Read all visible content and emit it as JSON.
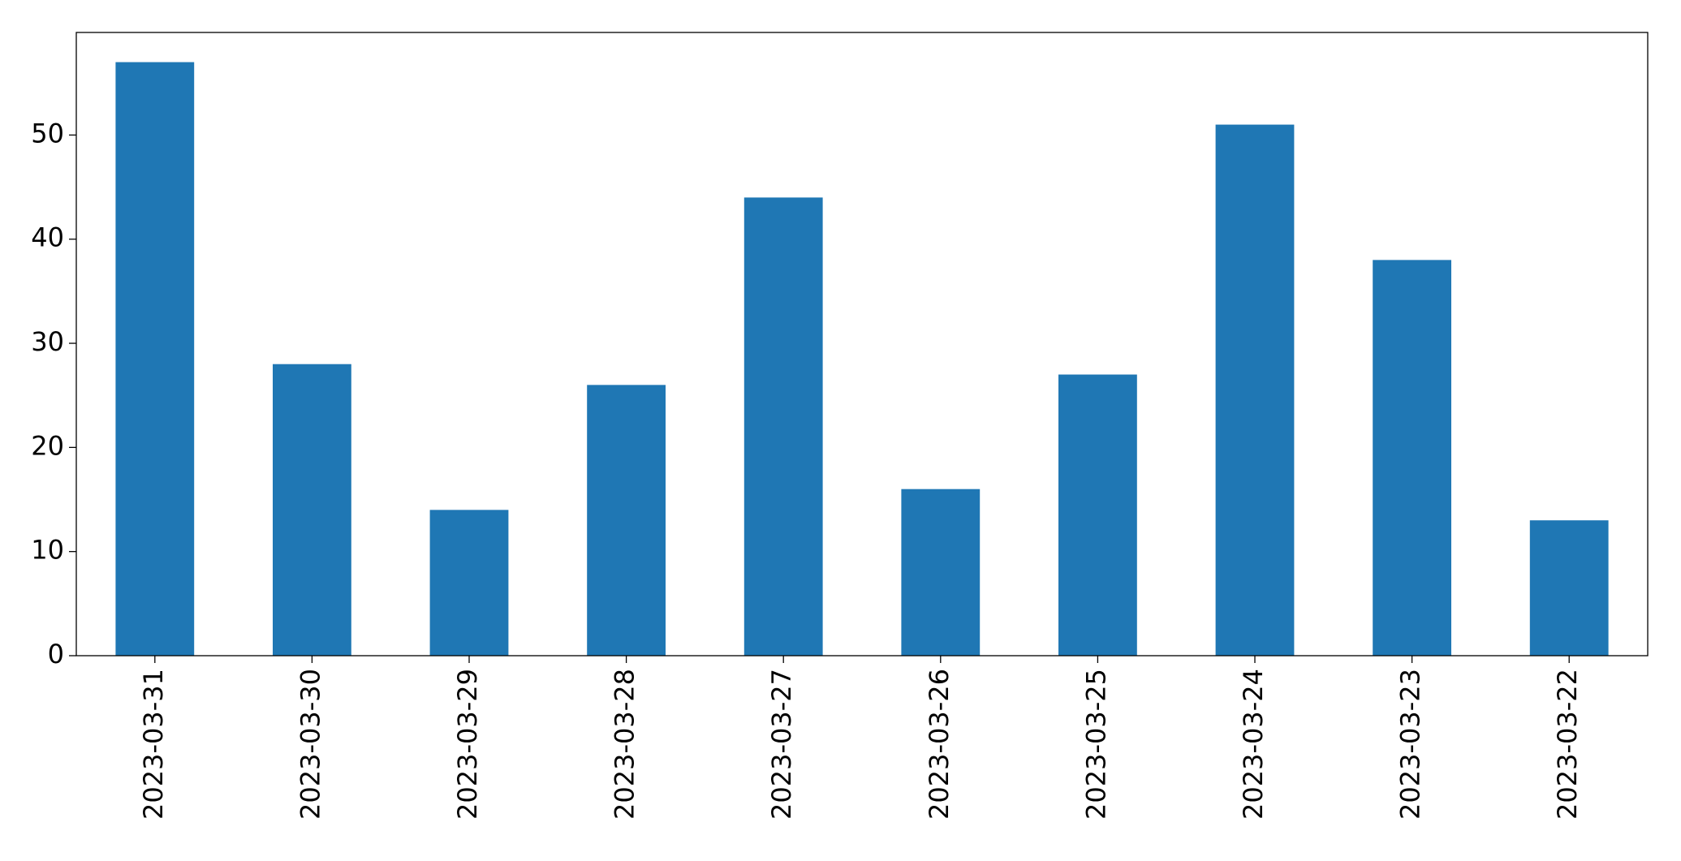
{
  "chart_data": {
    "type": "bar",
    "categories": [
      "2023-03-31",
      "2023-03-30",
      "2023-03-29",
      "2023-03-28",
      "2023-03-27",
      "2023-03-26",
      "2023-03-25",
      "2023-03-24",
      "2023-03-23",
      "2023-03-22"
    ],
    "values": [
      57,
      28,
      14,
      26,
      44,
      16,
      27,
      51,
      38,
      13
    ],
    "color": "#1f77b4",
    "ylim": [
      0,
      59.85
    ],
    "yticks": [
      0,
      10,
      20,
      30,
      40,
      50
    ],
    "grid": false
  }
}
